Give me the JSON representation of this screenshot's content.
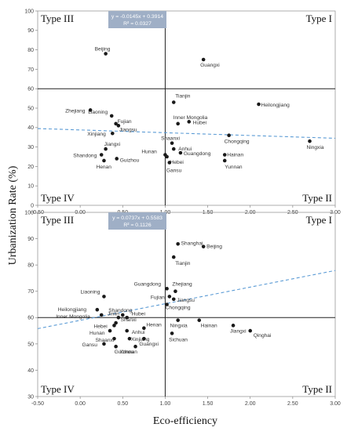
{
  "figure": {
    "ylabel": "Urbanization Rate (%)",
    "xlabel": "Eco-efficiency"
  },
  "chart_data": [
    {
      "type": "scatter",
      "xlim": [
        -0.5,
        3.0
      ],
      "ylim": [
        0,
        100
      ],
      "x_ticks": [
        "-0.50",
        "0.00",
        "0.50",
        "1.00",
        "1.50",
        "2.00",
        "2.50",
        "3.00"
      ],
      "y_ticks": [
        "0",
        "10",
        "20",
        "30",
        "40",
        "50",
        "60",
        "70",
        "80",
        "90",
        "100"
      ],
      "quadrant_lines": {
        "x": 1.0,
        "y": 60
      },
      "quadrants": {
        "top_left": "Type III",
        "top_right": "Type I",
        "bottom_left": "Type IV",
        "bottom_right": "Type II"
      },
      "trendline": {
        "slope": -0.0145,
        "intercept": 0.3914,
        "equation": "y = -0.0145x + 0.3914",
        "r2": "R² = 0.0327",
        "y_start": 39.5,
        "y_end": 34.5
      },
      "grid": false,
      "points": [
        {
          "label": "Beijing",
          "x": 0.3,
          "y": 78
        },
        {
          "label": "Guangxi",
          "x": 1.45,
          "y": 75
        },
        {
          "label": "Tianjin",
          "x": 1.1,
          "y": 53
        },
        {
          "label": "Heilongjiang",
          "x": 2.1,
          "y": 52
        },
        {
          "label": "Zhejiang",
          "x": 0.12,
          "y": 49
        },
        {
          "label": "Liaoning",
          "x": 0.37,
          "y": 46
        },
        {
          "label": "Fujian",
          "x": 0.42,
          "y": 42
        },
        {
          "label": "Jiangsu",
          "x": 0.45,
          "y": 41
        },
        {
          "label": "Inner Mongolia",
          "x": 1.15,
          "y": 42
        },
        {
          "label": "Hubei",
          "x": 1.28,
          "y": 43
        },
        {
          "label": "Xinjiang",
          "x": 0.38,
          "y": 37
        },
        {
          "label": "Chongqing",
          "x": 1.75,
          "y": 36
        },
        {
          "label": "Ningxia",
          "x": 2.7,
          "y": 33
        },
        {
          "label": "Shaanxi",
          "x": 1.08,
          "y": 32
        },
        {
          "label": "Anhui",
          "x": 1.1,
          "y": 29
        },
        {
          "label": "Jiangxi",
          "x": 0.3,
          "y": 29
        },
        {
          "label": "Hunan",
          "x": 1.0,
          "y": 26
        },
        {
          "label": "Shandong",
          "x": 0.25,
          "y": 26
        },
        {
          "label": "Guangdong",
          "x": 1.18,
          "y": 27
        },
        {
          "label": "Hainan",
          "x": 1.7,
          "y": 26
        },
        {
          "label": "Guizhou",
          "x": 0.43,
          "y": 24
        },
        {
          "label": "Hebei",
          "x": 1.02,
          "y": 25
        },
        {
          "label": "Henan",
          "x": 0.28,
          "y": 23
        },
        {
          "label": "Yunnan",
          "x": 1.7,
          "y": 23
        },
        {
          "label": "Gansu",
          "x": 1.05,
          "y": 22
        }
      ]
    },
    {
      "type": "scatter",
      "xlim": [
        -0.5,
        3.0
      ],
      "ylim": [
        30,
        100
      ],
      "x_ticks": [
        "-0.50",
        "0.00",
        "0.50",
        "1.00",
        "1.50",
        "2.00",
        "2.50",
        "3.00"
      ],
      "y_ticks": [
        "30",
        "40",
        "50",
        "60",
        "70",
        "80",
        "90",
        "100"
      ],
      "quadrant_lines": {
        "x": 1.0,
        "y": 60
      },
      "quadrants": {
        "top_left": "Type III",
        "top_right": "Type I",
        "bottom_left": "Type IV",
        "bottom_right": "Type II"
      },
      "trendline": {
        "slope": 0.0737,
        "intercept": 0.5583,
        "equation": "y = 0.0737x + 0.5583",
        "r2": "R² = 0.1126",
        "y_start": 55.8,
        "y_end": 77.9
      },
      "grid": false,
      "points": [
        {
          "label": "Shanghai",
          "x": 1.15,
          "y": 88
        },
        {
          "label": "Beijing",
          "x": 1.45,
          "y": 87
        },
        {
          "label": "Tianjin",
          "x": 1.1,
          "y": 83
        },
        {
          "label": "Guangdong",
          "x": 1.02,
          "y": 71
        },
        {
          "label": "Zhejiang",
          "x": 1.12,
          "y": 70
        },
        {
          "label": "Fujian",
          "x": 1.05,
          "y": 68
        },
        {
          "label": "Jiangsu",
          "x": 1.1,
          "y": 67
        },
        {
          "label": "Liaoning",
          "x": 0.28,
          "y": 68
        },
        {
          "label": "Chongqing",
          "x": 1.02,
          "y": 65
        },
        {
          "label": "Heilongjiang",
          "x": 0.2,
          "y": 63
        },
        {
          "label": "Shandong",
          "x": 0.5,
          "y": 61
        },
        {
          "label": "Jinlin",
          "x": 0.45,
          "y": 60
        },
        {
          "label": "Hubei",
          "x": 0.55,
          "y": 60
        },
        {
          "label": "Inner Mongolia",
          "x": 0.25,
          "y": 61
        },
        {
          "label": "Shanxi",
          "x": 0.42,
          "y": 58
        },
        {
          "label": "Ningxia",
          "x": 1.15,
          "y": 59
        },
        {
          "label": "Hainan",
          "x": 1.4,
          "y": 59
        },
        {
          "label": "Henan",
          "x": 0.75,
          "y": 56
        },
        {
          "label": "Hebei",
          "x": 0.4,
          "y": 57
        },
        {
          "label": "Anhui",
          "x": 0.55,
          "y": 55
        },
        {
          "label": "Jiangxi",
          "x": 1.8,
          "y": 57
        },
        {
          "label": "Qinghai",
          "x": 2.0,
          "y": 55
        },
        {
          "label": "Hunan",
          "x": 0.35,
          "y": 55
        },
        {
          "label": "Shaanxi",
          "x": 0.4,
          "y": 52
        },
        {
          "label": "Xinjiang",
          "x": 0.58,
          "y": 52
        },
        {
          "label": "Guangxi",
          "x": 0.75,
          "y": 52
        },
        {
          "label": "Sichuan",
          "x": 1.08,
          "y": 54
        },
        {
          "label": "Gansu",
          "x": 0.28,
          "y": 50
        },
        {
          "label": "Guizhou",
          "x": 0.42,
          "y": 49
        },
        {
          "label": "Yunnan",
          "x": 0.65,
          "y": 49
        }
      ]
    }
  ]
}
